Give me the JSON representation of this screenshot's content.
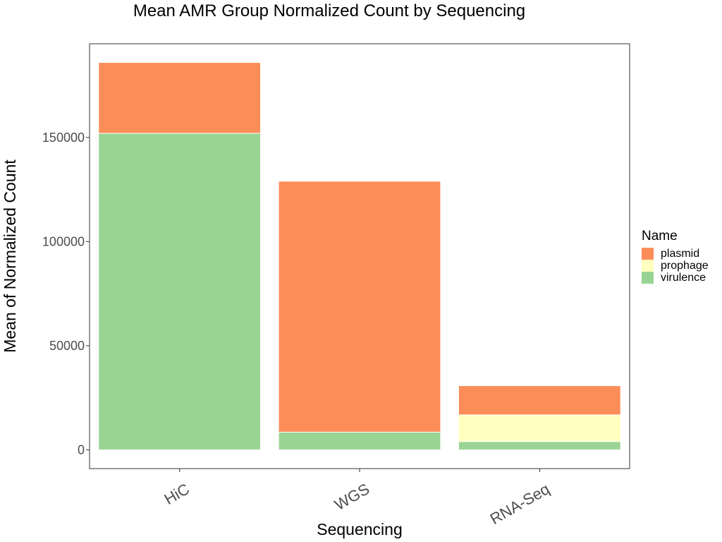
{
  "chart_data": {
    "type": "bar",
    "stacked": true,
    "title": "Mean AMR Group Normalized Count by Sequencing",
    "xlabel": "Sequencing",
    "ylabel": "Mean of Normalized Count",
    "categories": [
      "HiC",
      "WGS",
      "RNA-Seq"
    ],
    "series": [
      {
        "name": "virulence",
        "color": "#9ad494",
        "values": [
          152000,
          8500,
          4000
        ]
      },
      {
        "name": "prophage",
        "color": "#ffffbf",
        "values": [
          0,
          0,
          12800
        ]
      },
      {
        "name": "plasmid",
        "color": "#fc8d59",
        "values": [
          34000,
          120500,
          14000
        ]
      }
    ],
    "ylim": [
      -9000,
      195000
    ],
    "yticks": [
      0,
      50000,
      100000,
      150000
    ],
    "ytick_labels": [
      "0",
      "50000",
      "100000",
      "150000"
    ],
    "legend": {
      "title": "Name",
      "position": "right",
      "order": [
        "plasmid",
        "prophage",
        "virulence"
      ]
    },
    "grid": false
  }
}
